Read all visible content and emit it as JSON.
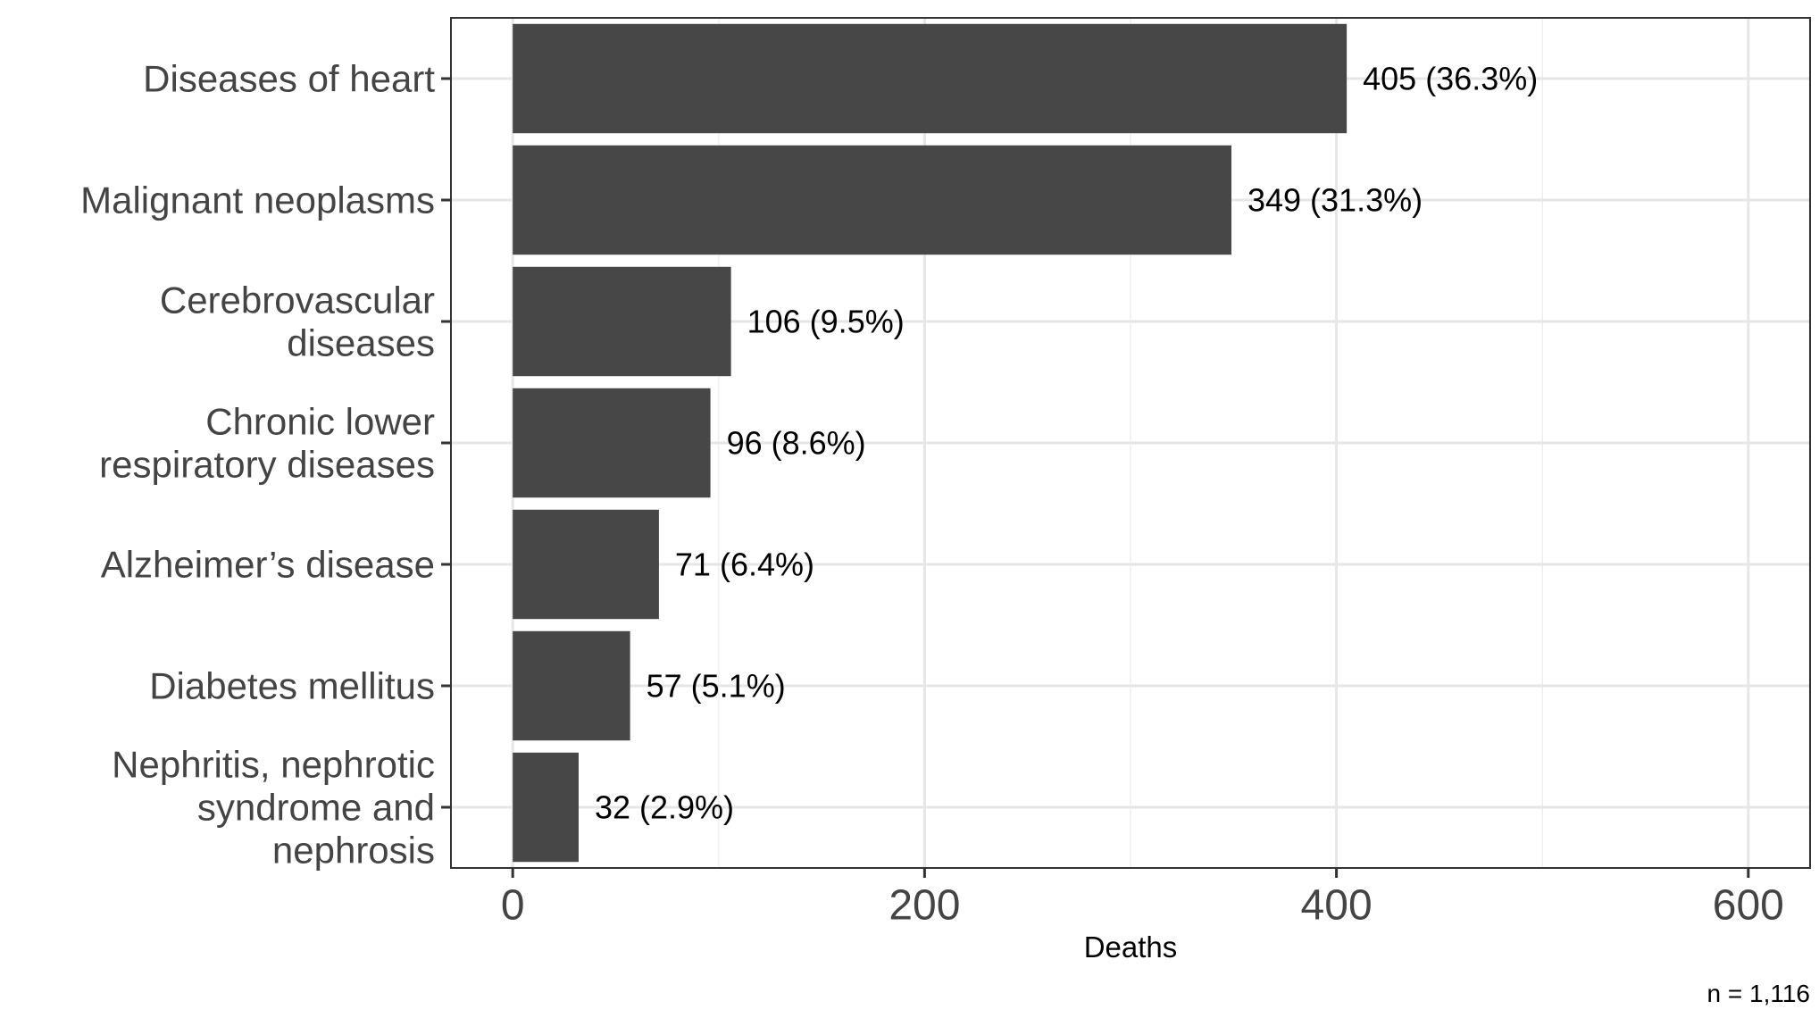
{
  "chart_data": {
    "type": "bar",
    "orientation": "horizontal",
    "categories": [
      [
        "Diseases of heart"
      ],
      [
        "Malignant neoplasms"
      ],
      [
        "Cerebrovascular",
        "diseases"
      ],
      [
        "Chronic lower",
        "respiratory diseases"
      ],
      [
        "Alzheimer’s disease"
      ],
      [
        "Diabetes mellitus"
      ],
      [
        "Nephritis, nephrotic",
        "syndrome and",
        "nephrosis"
      ]
    ],
    "values": [
      405,
      349,
      106,
      96,
      71,
      57,
      32
    ],
    "data_labels": [
      "405 (36.3%)",
      "349 (31.3%)",
      "106 (9.5%)",
      "96 (8.6%)",
      "71 (6.4%)",
      "57 (5.1%)",
      "32 (2.9%)"
    ],
    "xlabel": "Deaths",
    "ylabel": "",
    "xlim": [
      -30,
      630
    ],
    "x_ticks": [
      0,
      200,
      400,
      600
    ],
    "x_tick_labels": [
      "0",
      "200",
      "400",
      "600"
    ],
    "x_minor_ticks": [
      100,
      300,
      500
    ],
    "caption": "n = 1,116",
    "grid": true,
    "legend": "none",
    "colors": {
      "bar": "#474747",
      "grid_major": "#e6e6e6",
      "grid_minor": "#f0f0f0",
      "panel_border": "#333333",
      "axis_text": "#444444"
    }
  }
}
